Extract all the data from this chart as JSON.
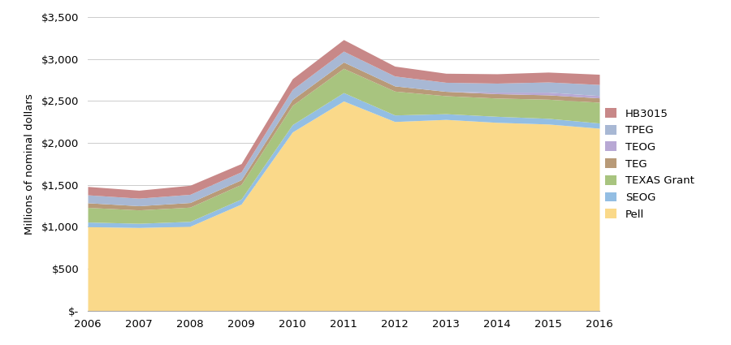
{
  "years": [
    2006,
    2007,
    2008,
    2009,
    2010,
    2011,
    2012,
    2013,
    2014,
    2015,
    2016
  ],
  "series": {
    "Pell": [
      1000,
      990,
      1005,
      1270,
      2130,
      2500,
      2255,
      2280,
      2245,
      2225,
      2175
    ],
    "SEOG": [
      55,
      50,
      58,
      60,
      88,
      100,
      78,
      68,
      72,
      68,
      62
    ],
    "TEXAS Grant": [
      175,
      160,
      170,
      175,
      230,
      290,
      285,
      215,
      218,
      228,
      248
    ],
    "TEG": [
      55,
      50,
      55,
      55,
      70,
      75,
      62,
      52,
      52,
      52,
      52
    ],
    "TEOG": [
      0,
      0,
      0,
      0,
      0,
      0,
      0,
      0,
      18,
      32,
      28
    ],
    "TPEG": [
      95,
      90,
      98,
      95,
      120,
      130,
      118,
      108,
      108,
      122,
      132
    ],
    "HB3015": [
      100,
      95,
      108,
      98,
      128,
      138,
      118,
      108,
      112,
      118,
      122
    ]
  },
  "colors": {
    "Pell": "#FAD98A",
    "SEOG": "#93BEE3",
    "TEXAS Grant": "#A8C47F",
    "TEG": "#B89A78",
    "TEOG": "#B8A8D4",
    "TPEG": "#A8B8D4",
    "HB3015": "#C88888"
  },
  "ylabel": "Millions of nominal dollars",
  "ylim": [
    0,
    3500
  ],
  "yticks": [
    0,
    500,
    1000,
    1500,
    2000,
    2500,
    3000,
    3500
  ],
  "ytick_labels": [
    "$-",
    "$500",
    "$1,000",
    "$1,500",
    "$2,000",
    "$2,500",
    "$3,000",
    "$3,500"
  ],
  "legend_order": [
    "HB3015",
    "TPEG",
    "TEOG",
    "TEG",
    "TEXAS Grant",
    "SEOG",
    "Pell"
  ],
  "stack_order": [
    "Pell",
    "SEOG",
    "TEXAS Grant",
    "TEG",
    "TEOG",
    "TPEG",
    "HB3015"
  ]
}
